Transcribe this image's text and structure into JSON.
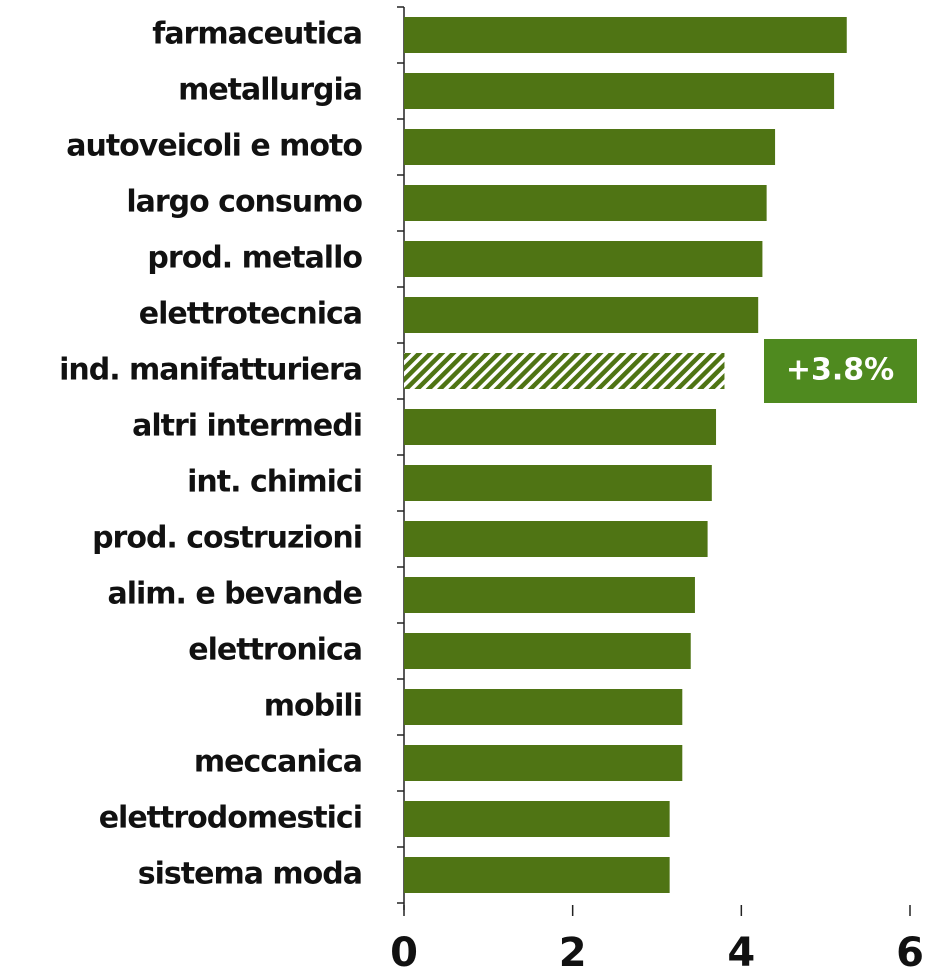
{
  "chart_data": {
    "type": "barh",
    "categories": [
      "farmaceutica",
      "metallurgia",
      "autoveicoli e moto",
      "largo consumo",
      "prod. metallo",
      "elettrotecnica",
      "ind. manifatturiera",
      "altri intermedi",
      "int. chimici",
      "prod. costruzioni",
      "alim. e bevande",
      "elettronica",
      "mobili",
      "meccanica",
      "elettrodomestici",
      "sistema moda"
    ],
    "values": [
      5.25,
      5.1,
      4.4,
      4.3,
      4.25,
      4.2,
      3.8,
      3.7,
      3.65,
      3.6,
      3.45,
      3.4,
      3.3,
      3.3,
      3.15,
      3.15
    ],
    "value_labels": [
      null,
      null,
      null,
      null,
      null,
      null,
      "+3.8%",
      null,
      null,
      null,
      null,
      null,
      null,
      null,
      null,
      null
    ],
    "color": "#4f7414",
    "label_color": "#4f8a1f",
    "xlim": [
      0,
      6
    ],
    "xticks": [
      0,
      2,
      4,
      6
    ],
    "grid": false
  }
}
